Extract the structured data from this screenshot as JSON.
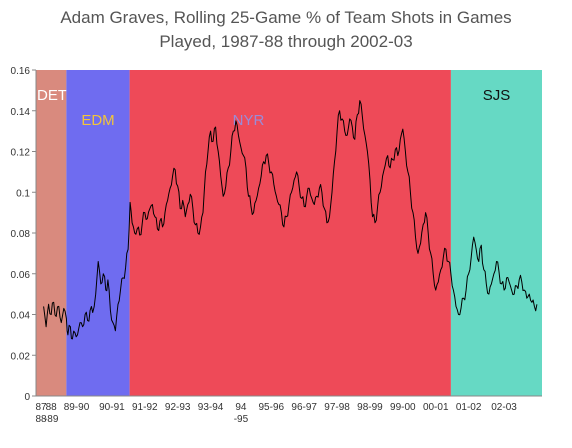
{
  "chart_data": {
    "type": "line",
    "title_lines": [
      "Adam Graves, Rolling 25-Game % of Team Shots in Games",
      "Played, 1987-88 through 2002-03"
    ],
    "xlabel": "",
    "ylabel": "",
    "ylim": [
      0,
      0.16
    ],
    "y_ticks": [
      0,
      0.02,
      0.04,
      0.06,
      0.08,
      0.1,
      0.12,
      0.14,
      0.16
    ],
    "y_tick_labels": [
      "0",
      "0.02",
      "0.04",
      "0.06",
      "0.08",
      "0.1",
      "0.12",
      "0.14",
      "0.16"
    ],
    "x_range": [
      0,
      100
    ],
    "x_ticks": [
      {
        "x": 1,
        "label_top": "87",
        "label_bottom": "88"
      },
      {
        "x": 3,
        "label_top": "88",
        "label_bottom": "-89"
      },
      {
        "x": 8,
        "label_top": "89-90",
        "label_bottom": ""
      },
      {
        "x": 15,
        "label_top": "90-91",
        "label_bottom": ""
      },
      {
        "x": 21.5,
        "label_top": "91-92",
        "label_bottom": ""
      },
      {
        "x": 28,
        "label_top": "92-93",
        "label_bottom": ""
      },
      {
        "x": 34.5,
        "label_top": "93-94",
        "label_bottom": ""
      },
      {
        "x": 40.5,
        "label_top": "94",
        "label_bottom": "-95"
      },
      {
        "x": 46.5,
        "label_top": "95-96",
        "label_bottom": ""
      },
      {
        "x": 53,
        "label_top": "96-97",
        "label_bottom": ""
      },
      {
        "x": 59.5,
        "label_top": "97-98",
        "label_bottom": ""
      },
      {
        "x": 66,
        "label_top": "98-99",
        "label_bottom": ""
      },
      {
        "x": 72.5,
        "label_top": "99-00",
        "label_bottom": ""
      },
      {
        "x": 79,
        "label_top": "00-01",
        "label_bottom": ""
      },
      {
        "x": 85.5,
        "label_top": "01-02",
        "label_bottom": ""
      },
      {
        "x": 92.5,
        "label_top": "02-03",
        "label_bottom": ""
      }
    ],
    "team_regions": [
      {
        "team": "DET",
        "x_start": 0,
        "x_end": 6,
        "color": "#d98a7e",
        "label_color": "#ffffff"
      },
      {
        "team": "EDM",
        "x_start": 6,
        "x_end": 18.5,
        "color": "#6f6cf0",
        "label_color": "#f2c43a"
      },
      {
        "team": "NYR",
        "x_start": 18.5,
        "x_end": 82,
        "color": "#ee4a58",
        "label_color": "#9a8bd8"
      },
      {
        "team": "SJS",
        "x_start": 82,
        "x_end": 100,
        "color": "#66d9c4",
        "label_color": "#111111"
      }
    ],
    "grid": false,
    "legend": "none",
    "series": [
      {
        "line_color": "#000000",
        "points": [
          [
            1.5,
            0.044
          ],
          [
            2,
            0.034
          ],
          [
            2.5,
            0.045
          ],
          [
            3,
            0.04
          ],
          [
            3.5,
            0.046
          ],
          [
            4,
            0.039
          ],
          [
            4.5,
            0.044
          ],
          [
            5,
            0.036
          ],
          [
            5.5,
            0.043
          ],
          [
            6,
            0.038
          ],
          [
            6.3,
            0.03
          ],
          [
            6.8,
            0.034
          ],
          [
            7.2,
            0.028
          ],
          [
            7.7,
            0.031
          ],
          [
            8.2,
            0.03
          ],
          [
            8.7,
            0.036
          ],
          [
            9.2,
            0.034
          ],
          [
            9.7,
            0.04
          ],
          [
            10.2,
            0.037
          ],
          [
            10.7,
            0.042
          ],
          [
            11.2,
            0.041
          ],
          [
            11.8,
            0.05
          ],
          [
            12.3,
            0.066
          ],
          [
            12.8,
            0.055
          ],
          [
            13.3,
            0.06
          ],
          [
            13.8,
            0.052
          ],
          [
            14.2,
            0.057
          ],
          [
            14.7,
            0.042
          ],
          [
            15.2,
            0.036
          ],
          [
            15.7,
            0.032
          ],
          [
            16.2,
            0.045
          ],
          [
            16.7,
            0.052
          ],
          [
            17.2,
            0.058
          ],
          [
            17.7,
            0.063
          ],
          [
            18.2,
            0.072
          ],
          [
            18.6,
            0.095
          ],
          [
            19,
            0.085
          ],
          [
            19.5,
            0.08
          ],
          [
            20,
            0.082
          ],
          [
            20.5,
            0.079
          ],
          [
            21,
            0.085
          ],
          [
            21.5,
            0.09
          ],
          [
            22,
            0.087
          ],
          [
            22.5,
            0.092
          ],
          [
            23,
            0.094
          ],
          [
            23.5,
            0.088
          ],
          [
            24,
            0.082
          ],
          [
            24.5,
            0.086
          ],
          [
            25,
            0.083
          ],
          [
            25.5,
            0.09
          ],
          [
            26,
            0.096
          ],
          [
            26.5,
            0.102
          ],
          [
            27,
            0.108
          ],
          [
            27.5,
            0.111
          ],
          [
            28,
            0.103
          ],
          [
            28.5,
            0.092
          ],
          [
            29,
            0.096
          ],
          [
            29.5,
            0.088
          ],
          [
            30,
            0.094
          ],
          [
            30.5,
            0.099
          ],
          [
            31,
            0.092
          ],
          [
            31.5,
            0.084
          ],
          [
            32,
            0.08
          ],
          [
            32.5,
            0.083
          ],
          [
            33,
            0.09
          ],
          [
            33.5,
            0.11
          ],
          [
            34,
            0.12
          ],
          [
            34.5,
            0.13
          ],
          [
            35,
            0.125
          ],
          [
            35.5,
            0.132
          ],
          [
            36,
            0.12
          ],
          [
            36.5,
            0.108
          ],
          [
            37,
            0.098
          ],
          [
            37.5,
            0.103
          ],
          [
            38,
            0.112
          ],
          [
            38.5,
            0.12
          ],
          [
            39,
            0.13
          ],
          [
            39.5,
            0.135
          ],
          [
            40,
            0.128
          ],
          [
            40.5,
            0.122
          ],
          [
            41,
            0.118
          ],
          [
            41.5,
            0.112
          ],
          [
            42,
            0.098
          ],
          [
            42.5,
            0.093
          ],
          [
            43,
            0.09
          ],
          [
            43.5,
            0.096
          ],
          [
            44,
            0.102
          ],
          [
            44.5,
            0.108
          ],
          [
            45,
            0.115
          ],
          [
            45.5,
            0.118
          ],
          [
            46,
            0.114
          ],
          [
            46.5,
            0.11
          ],
          [
            47,
            0.104
          ],
          [
            47.5,
            0.098
          ],
          [
            48,
            0.094
          ],
          [
            48.5,
            0.09
          ],
          [
            49,
            0.083
          ],
          [
            49.5,
            0.088
          ],
          [
            50,
            0.094
          ],
          [
            50.5,
            0.1
          ],
          [
            51,
            0.106
          ],
          [
            51.5,
            0.11
          ],
          [
            52,
            0.103
          ],
          [
            52.5,
            0.097
          ],
          [
            53,
            0.093
          ],
          [
            53.5,
            0.098
          ],
          [
            54,
            0.102
          ],
          [
            54.5,
            0.097
          ],
          [
            55,
            0.094
          ],
          [
            55.5,
            0.098
          ],
          [
            56,
            0.102
          ],
          [
            56.5,
            0.1
          ],
          [
            57,
            0.092
          ],
          [
            57.5,
            0.085
          ],
          [
            58,
            0.088
          ],
          [
            58.5,
            0.1
          ],
          [
            59,
            0.115
          ],
          [
            59.5,
            0.13
          ],
          [
            60,
            0.14
          ],
          [
            60.5,
            0.136
          ],
          [
            61,
            0.13
          ],
          [
            61.5,
            0.128
          ],
          [
            62,
            0.136
          ],
          [
            62.5,
            0.132
          ],
          [
            63,
            0.126
          ],
          [
            63.5,
            0.138
          ],
          [
            64,
            0.145
          ],
          [
            64.5,
            0.137
          ],
          [
            65,
            0.128
          ],
          [
            65.5,
            0.12
          ],
          [
            66,
            0.106
          ],
          [
            66.5,
            0.088
          ],
          [
            67,
            0.085
          ],
          [
            67.5,
            0.093
          ],
          [
            68,
            0.1
          ],
          [
            68.5,
            0.108
          ],
          [
            69,
            0.113
          ],
          [
            69.5,
            0.118
          ],
          [
            70,
            0.112
          ],
          [
            70.5,
            0.116
          ],
          [
            71,
            0.121
          ],
          [
            71.5,
            0.118
          ],
          [
            72,
            0.126
          ],
          [
            72.5,
            0.131
          ],
          [
            73,
            0.12
          ],
          [
            73.5,
            0.11
          ],
          [
            74,
            0.1
          ],
          [
            74.5,
            0.09
          ],
          [
            75,
            0.078
          ],
          [
            75.5,
            0.07
          ],
          [
            76,
            0.075
          ],
          [
            76.5,
            0.084
          ],
          [
            77,
            0.09
          ],
          [
            77.5,
            0.08
          ],
          [
            78,
            0.07
          ],
          [
            78.5,
            0.06
          ],
          [
            79,
            0.052
          ],
          [
            79.5,
            0.056
          ],
          [
            80,
            0.062
          ],
          [
            80.5,
            0.068
          ],
          [
            81,
            0.072
          ],
          [
            81.5,
            0.066
          ],
          [
            82,
            0.06
          ],
          [
            82.5,
            0.052
          ],
          [
            83,
            0.044
          ],
          [
            83.5,
            0.04
          ],
          [
            84,
            0.043
          ],
          [
            84.5,
            0.048
          ],
          [
            85,
            0.052
          ],
          [
            85.5,
            0.06
          ],
          [
            86,
            0.068
          ],
          [
            86.5,
            0.078
          ],
          [
            87,
            0.072
          ],
          [
            87.5,
            0.066
          ],
          [
            88,
            0.074
          ],
          [
            88.5,
            0.062
          ],
          [
            89,
            0.055
          ],
          [
            89.5,
            0.05
          ],
          [
            90,
            0.055
          ],
          [
            90.5,
            0.06
          ],
          [
            91,
            0.066
          ],
          [
            91.5,
            0.061
          ],
          [
            92,
            0.055
          ],
          [
            92.5,
            0.052
          ],
          [
            93,
            0.058
          ],
          [
            93.5,
            0.056
          ],
          [
            94,
            0.052
          ],
          [
            94.5,
            0.05
          ],
          [
            95,
            0.054
          ],
          [
            95.5,
            0.057
          ],
          [
            96,
            0.056
          ],
          [
            96.5,
            0.052
          ],
          [
            97,
            0.048
          ],
          [
            97.5,
            0.05
          ],
          [
            98,
            0.046
          ],
          [
            98.5,
            0.044
          ],
          [
            99,
            0.045
          ]
        ]
      }
    ]
  }
}
